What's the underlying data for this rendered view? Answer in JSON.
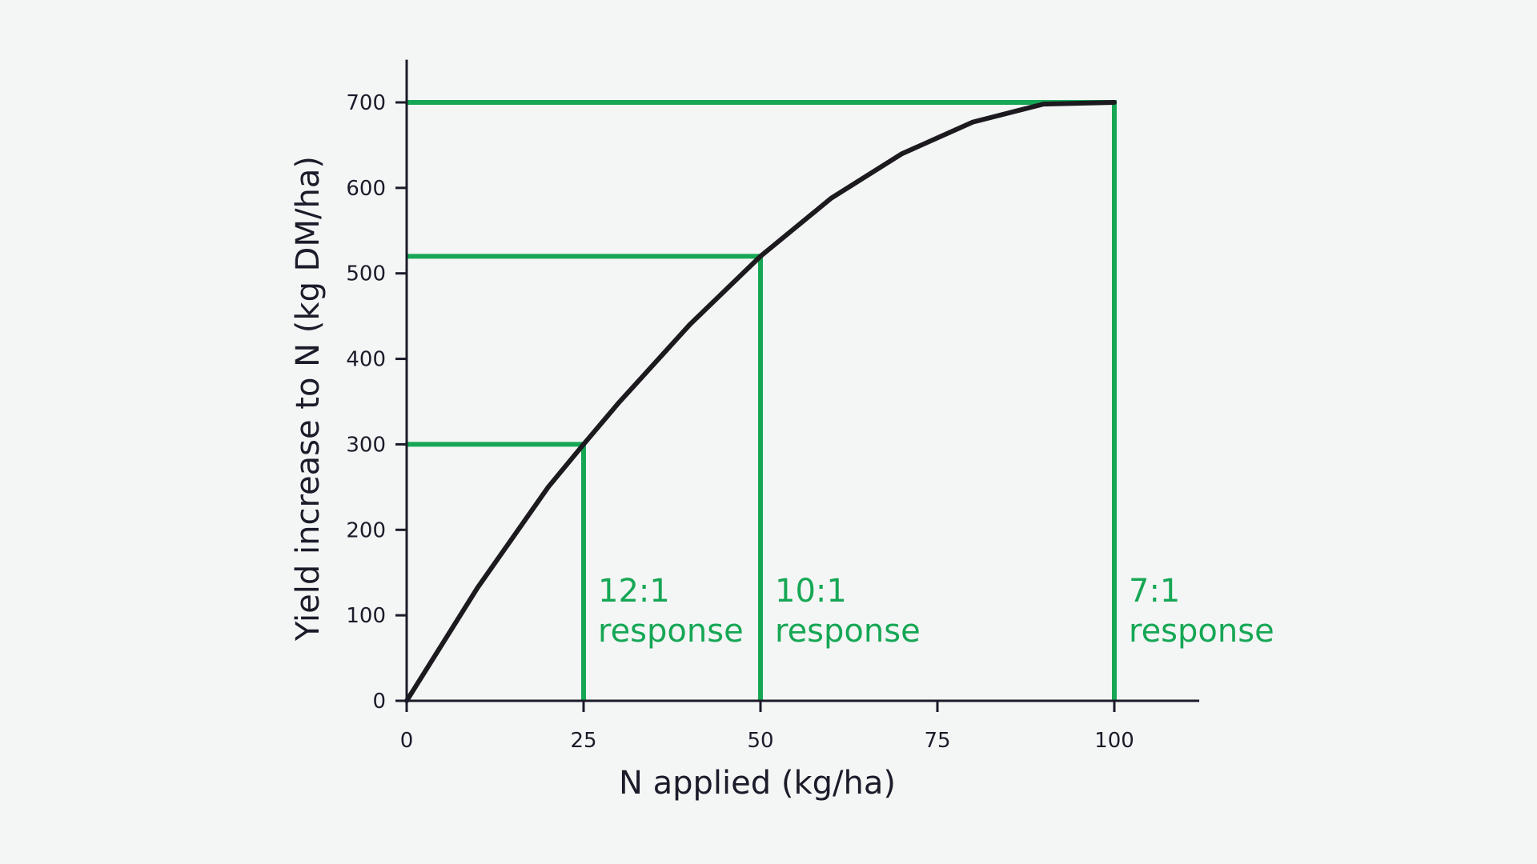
{
  "chart_data": {
    "type": "line",
    "title": "",
    "xlabel": "N applied (kg/ha)",
    "ylabel": "Yield increase to N (kg DM/ha)",
    "xlim": [
      0,
      112
    ],
    "ylim": [
      0,
      750
    ],
    "xticks": [
      0,
      25,
      50,
      75,
      100
    ],
    "yticks": [
      0,
      100,
      200,
      300,
      400,
      500,
      600,
      700
    ],
    "grid": false,
    "series": [
      {
        "x": [
          0,
          10,
          20,
          25,
          30,
          40,
          50,
          60,
          70,
          80,
          90,
          100
        ],
        "y": [
          0,
          132,
          250,
          300,
          349,
          440,
          520,
          588,
          640,
          677,
          698,
          700
        ]
      }
    ],
    "reference_points": [
      {
        "x": 25,
        "y": 300,
        "label": [
          "12:1",
          "response"
        ]
      },
      {
        "x": 50,
        "y": 520,
        "label": [
          "10:1",
          "response"
        ]
      },
      {
        "x": 100,
        "y": 700,
        "label": [
          "7:1",
          "response"
        ]
      }
    ],
    "colors": {
      "curve": "#1c1a1f",
      "reference": "#16a755",
      "axis": "#1b1b2a",
      "background": "#f4f6f5"
    }
  }
}
